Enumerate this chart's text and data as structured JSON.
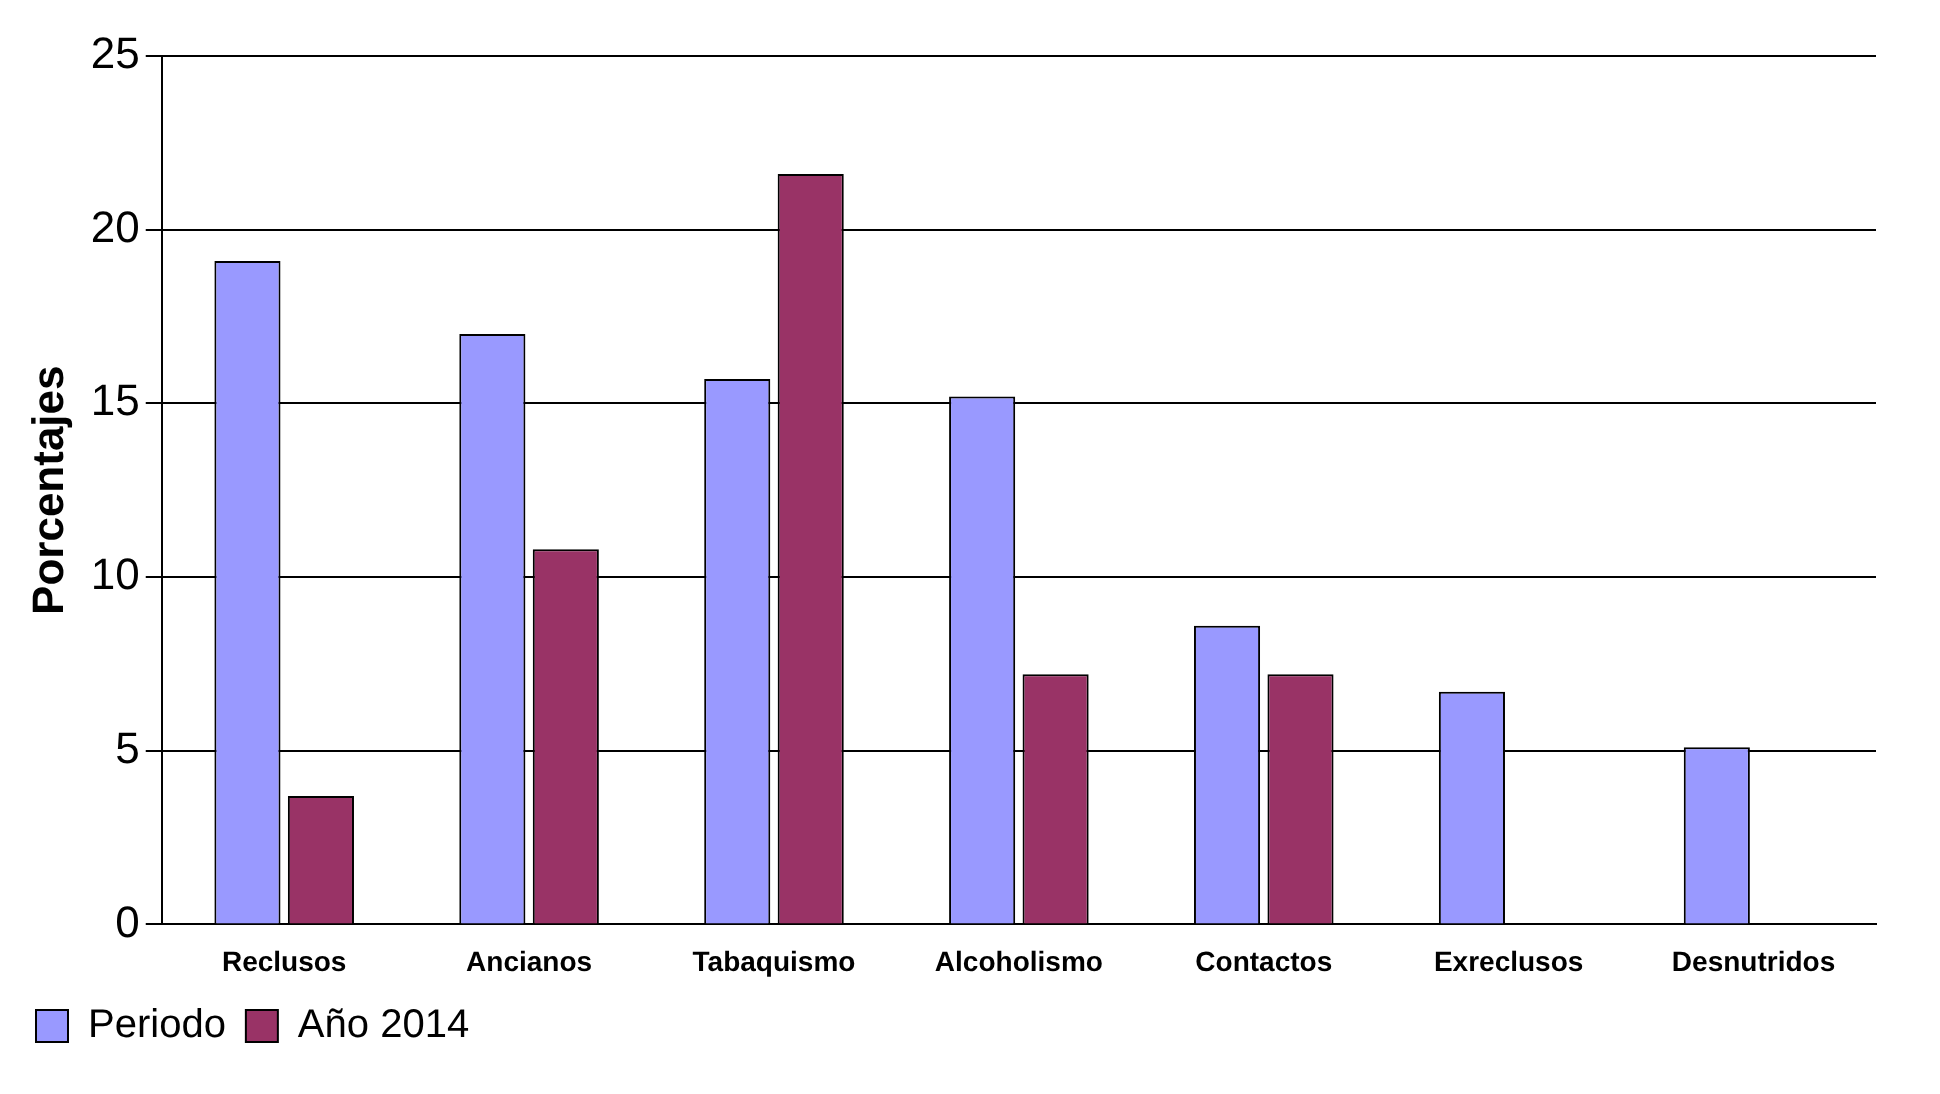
{
  "chart_data": {
    "type": "bar",
    "ylabel": "Porcentajes",
    "categories": [
      "Reclusos",
      "Ancianos",
      "Tabaquismo",
      "Alcoholismo",
      "Contactos",
      "Exreclusos",
      "Desnutridos"
    ],
    "series": [
      {
        "name": "Periodo",
        "color": "#9999ff",
        "values": [
          19.1,
          17,
          15.7,
          15.2,
          8.6,
          6.7,
          5.1
        ]
      },
      {
        "name": "Año 2014",
        "color": "#993366",
        "values": [
          3.7,
          10.8,
          21.6,
          7.2,
          7.2,
          0,
          0
        ]
      }
    ],
    "ylim": [
      0,
      25
    ],
    "yticks": [
      0,
      5,
      10,
      15,
      20,
      25
    ],
    "grid": "y",
    "legend": "bottom left"
  }
}
